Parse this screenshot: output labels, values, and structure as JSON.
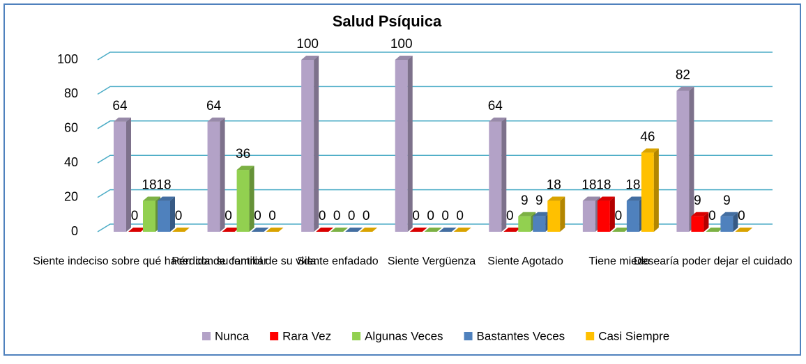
{
  "chart_data": {
    "type": "bar3d",
    "title": "Salud Psíquica",
    "categories": [
      "Siente indeciso sobre qué hacer con su familiar",
      "Pérdida de control de su vida",
      "Siente enfadado",
      "Siente Vergüenza",
      "Siente Agotado",
      "Tiene miedo",
      "Desearía poder dejar el cuidado"
    ],
    "series": [
      {
        "name": "Nunca",
        "color": "#b3a2c7",
        "values": [
          64,
          64,
          100,
          100,
          64,
          18,
          82
        ]
      },
      {
        "name": "Rara Vez",
        "color": "#ff0000",
        "values": [
          0,
          0,
          0,
          0,
          0,
          18,
          9
        ]
      },
      {
        "name": "Algunas Veces",
        "color": "#92d050",
        "values": [
          18,
          36,
          0,
          0,
          9,
          0,
          0
        ]
      },
      {
        "name": "Bastantes Veces",
        "color": "#4f81bd",
        "values": [
          18,
          0,
          0,
          0,
          9,
          18,
          9
        ]
      },
      {
        "name": "Casi Siempre",
        "color": "#ffc000",
        "values": [
          0,
          0,
          0,
          0,
          18,
          46,
          0
        ]
      }
    ],
    "ylim": [
      0,
      100
    ],
    "yticks": [
      0,
      20,
      40,
      60,
      80,
      100
    ],
    "grid": true,
    "legend": "bottom"
  }
}
